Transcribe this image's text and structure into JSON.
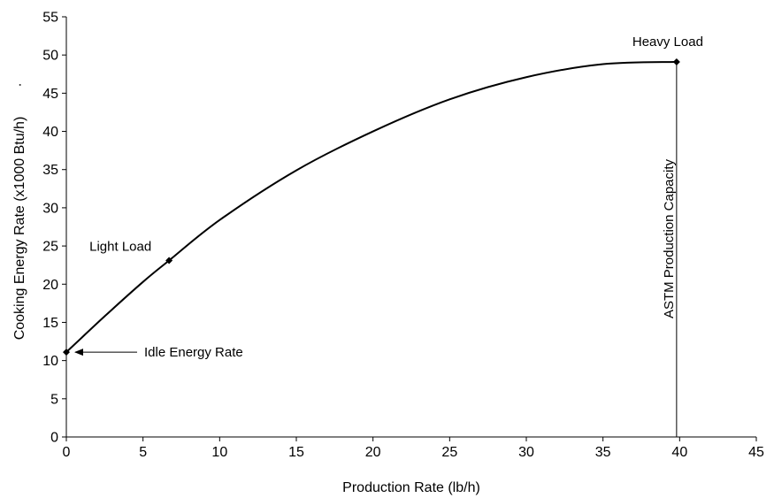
{
  "chart_data": {
    "type": "line",
    "title": "",
    "xlabel": "Production Rate (lb/h)",
    "ylabel": "Cooking Energy Rate (x1000 Btu/h)",
    "ylabel_suffix": "·",
    "xlim": [
      0,
      45
    ],
    "ylim": [
      0,
      55
    ],
    "x_ticks": [
      0,
      5,
      10,
      15,
      20,
      25,
      30,
      35,
      40,
      45
    ],
    "y_ticks": [
      0,
      5,
      10,
      15,
      20,
      25,
      30,
      35,
      40,
      45,
      50,
      55
    ],
    "grid": false,
    "legend": "none",
    "series": [
      {
        "x": [
          0,
          2.5,
          5,
          6.7,
          10,
          15,
          20,
          25,
          30,
          35,
          39.8
        ],
        "y": [
          11.1,
          15.8,
          20.3,
          23.1,
          28.4,
          34.9,
          40.0,
          44.2,
          47.1,
          48.8,
          49.1
        ]
      }
    ],
    "markers": [
      {
        "x": 0,
        "y": 11.1
      },
      {
        "x": 6.7,
        "y": 23.1
      },
      {
        "x": 39.8,
        "y": 49.1
      }
    ],
    "vertical_line": {
      "x": 39.8,
      "label": "ASTM Production Capacity"
    },
    "annotations": [
      {
        "text": "Heavy Load",
        "x": 39.8,
        "y": 49.1
      },
      {
        "text": "Light Load",
        "x": 6.7,
        "y": 23.1
      },
      {
        "text": "Idle Energy Rate",
        "x": 0,
        "y": 11.1
      }
    ],
    "color": "#000000"
  }
}
